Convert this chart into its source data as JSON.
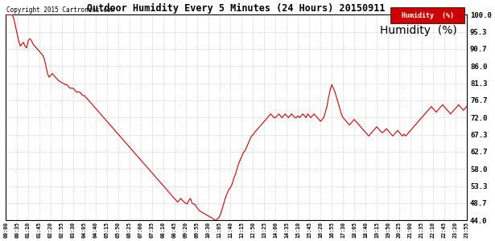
{
  "title": "Outdoor Humidity Every 5 Minutes (24 Hours) 20150911",
  "copyright": "Copyright 2015 Cartronics.com",
  "legend_label": "Humidity  (%)",
  "legend_bg": "#cc0000",
  "legend_text_color": "#ffffff",
  "line_color": "#cc0000",
  "background_color": "#ffffff",
  "grid_color": "#999999",
  "yticks": [
    44.0,
    48.7,
    53.3,
    58.0,
    62.7,
    67.3,
    72.0,
    76.7,
    81.3,
    86.0,
    90.7,
    95.3,
    100.0
  ],
  "xtick_labels": [
    "00:00",
    "00:35",
    "01:10",
    "01:45",
    "02:20",
    "02:55",
    "03:30",
    "04:05",
    "04:40",
    "05:15",
    "05:50",
    "06:25",
    "07:00",
    "07:35",
    "08:10",
    "08:45",
    "09:20",
    "09:55",
    "10:30",
    "11:05",
    "11:40",
    "12:15",
    "12:50",
    "13:25",
    "14:00",
    "14:35",
    "15:10",
    "15:45",
    "16:20",
    "16:55",
    "17:30",
    "18:05",
    "18:40",
    "19:15",
    "19:50",
    "20:25",
    "21:00",
    "21:35",
    "22:10",
    "22:45",
    "23:20",
    "23:55"
  ],
  "humidity_values": [
    100.0,
    100.0,
    100.0,
    100.0,
    100.0,
    99.0,
    97.0,
    95.0,
    93.0,
    91.5,
    92.0,
    92.5,
    91.5,
    91.0,
    93.0,
    93.5,
    93.0,
    92.0,
    91.5,
    91.0,
    90.5,
    90.0,
    89.5,
    89.0,
    88.0,
    86.0,
    84.0,
    83.0,
    83.5,
    84.0,
    83.5,
    83.0,
    82.5,
    82.0,
    81.8,
    81.5,
    81.3,
    81.0,
    81.0,
    80.5,
    80.0,
    80.0,
    80.0,
    79.5,
    79.0,
    79.0,
    79.0,
    78.5,
    78.0,
    78.0,
    77.5,
    77.0,
    76.5,
    76.0,
    75.5,
    75.0,
    74.5,
    74.0,
    73.5,
    73.0,
    72.5,
    72.0,
    71.5,
    71.0,
    70.5,
    70.0,
    69.5,
    69.0,
    68.5,
    68.0,
    67.5,
    67.0,
    66.5,
    66.0,
    65.5,
    65.0,
    64.5,
    64.0,
    63.5,
    63.0,
    62.5,
    62.0,
    61.5,
    61.0,
    60.5,
    60.0,
    59.5,
    59.0,
    58.5,
    58.0,
    57.5,
    57.0,
    56.5,
    56.0,
    55.5,
    55.0,
    54.5,
    54.0,
    53.5,
    53.0,
    52.5,
    52.0,
    51.5,
    51.0,
    50.5,
    50.0,
    49.5,
    49.0,
    49.5,
    50.0,
    49.5,
    49.0,
    48.7,
    48.5,
    49.5,
    50.0,
    48.7,
    48.5,
    48.3,
    47.5,
    47.0,
    46.5,
    46.3,
    46.0,
    45.8,
    45.5,
    45.3,
    45.0,
    44.8,
    44.5,
    44.2,
    44.0,
    44.5,
    45.0,
    46.0,
    47.5,
    49.0,
    50.5,
    51.5,
    52.5,
    53.0,
    54.0,
    55.5,
    56.5,
    58.0,
    59.5,
    60.5,
    61.5,
    62.5,
    63.0,
    64.0,
    65.0,
    66.0,
    67.0,
    67.3,
    68.0,
    68.5,
    69.0,
    69.5,
    70.0,
    70.5,
    71.0,
    71.5,
    72.0,
    72.5,
    73.0,
    72.5,
    72.0,
    72.0,
    72.5,
    73.0,
    72.5,
    72.0,
    72.5,
    73.0,
    72.5,
    72.0,
    72.5,
    73.0,
    72.5,
    72.0,
    72.0,
    72.5,
    72.0,
    72.5,
    73.0,
    72.5,
    72.0,
    73.0,
    72.5,
    72.0,
    72.5,
    73.0,
    72.5,
    72.0,
    71.5,
    71.0,
    71.5,
    72.0,
    73.5,
    75.0,
    77.5,
    79.5,
    81.0,
    80.0,
    79.0,
    77.5,
    76.0,
    74.5,
    73.0,
    72.0,
    71.5,
    71.0,
    70.5,
    70.0,
    70.5,
    71.0,
    71.5,
    71.0,
    70.5,
    70.0,
    69.5,
    69.0,
    68.5,
    68.0,
    67.5,
    67.0,
    67.5,
    68.0,
    68.5,
    69.0,
    69.5,
    69.0,
    68.5,
    68.0,
    68.0,
    68.5,
    69.0,
    68.5,
    68.0,
    67.5,
    67.0,
    67.5,
    68.0,
    68.5,
    68.0,
    67.5,
    67.0,
    67.5,
    67.0,
    67.5,
    68.0,
    68.5,
    69.0,
    69.5,
    70.0,
    70.5,
    71.0,
    71.5,
    72.0,
    72.5,
    73.0,
    73.5,
    74.0,
    74.5,
    75.0,
    74.5,
    74.0,
    73.5,
    74.0,
    74.5,
    75.0,
    75.5,
    75.0,
    74.5,
    74.0,
    73.5,
    73.0,
    73.5,
    74.0,
    74.5,
    75.0,
    75.5,
    75.0,
    74.5,
    74.0,
    74.5,
    75.0
  ]
}
